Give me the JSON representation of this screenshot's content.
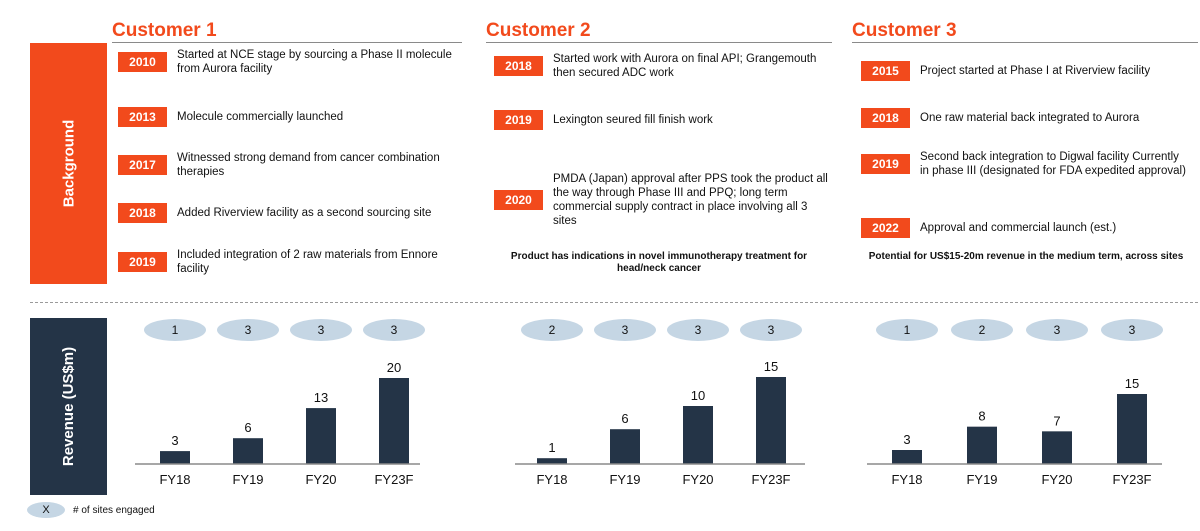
{
  "labels": {
    "background": "Background",
    "revenue": "Revenue (US$m)"
  },
  "customers": [
    {
      "title": "Customer 1",
      "events": [
        {
          "year": "2010",
          "text": "Started at NCE stage by sourcing a Phase II molecule from Aurora facility"
        },
        {
          "year": "2013",
          "text": "Molecule commercially launched"
        },
        {
          "year": "2017",
          "text": "Witnessed strong demand from cancer combination therapies"
        },
        {
          "year": "2018",
          "text": "Added Riverview facility as a second sourcing site"
        },
        {
          "year": "2019",
          "text": "Included integration of 2 raw materials from Ennore facility"
        }
      ],
      "summary": ""
    },
    {
      "title": "Customer 2",
      "events": [
        {
          "year": "2018",
          "text": "Started work with Aurora on final API; Grangemouth then secured ADC work"
        },
        {
          "year": "2019",
          "text": "Lexington seured fill finish work"
        },
        {
          "year": "2020",
          "text": "PMDA (Japan) approval after PPS took the product all the way through Phase III and PPQ; long term commercial supply contract in place involving all 3 sites"
        }
      ],
      "summary": "Product has indications in novel immunotherapy treatment for head/neck cancer"
    },
    {
      "title": "Customer 3",
      "events": [
        {
          "year": "2015",
          "text": "Project started at Phase I at Riverview facility"
        },
        {
          "year": "2018",
          "text": "One raw material back integrated to Aurora"
        },
        {
          "year": "2019",
          "text": "Second back integration to Digwal facility Currently in phase III (designated for FDA expedited approval)"
        },
        {
          "year": "2022",
          "text": "Approval and commercial launch (est.)"
        }
      ],
      "summary": "Potential for US$15-20m revenue in the medium term, across sites"
    }
  ],
  "chart_data": [
    {
      "type": "bar",
      "title": "",
      "categories": [
        "FY18",
        "FY19",
        "FY20",
        "FY23F"
      ],
      "values": [
        3,
        6,
        13,
        20
      ],
      "sites": [
        1,
        3,
        3,
        3
      ],
      "ylabel": "Revenue (US$m)",
      "ylim": [
        0,
        20
      ],
      "grid": false,
      "bar_color": "#243447"
    },
    {
      "type": "bar",
      "title": "",
      "categories": [
        "FY18",
        "FY19",
        "FY20",
        "FY23F"
      ],
      "values": [
        1,
        6,
        10,
        15
      ],
      "sites": [
        2,
        3,
        3,
        3
      ],
      "ylabel": "Revenue (US$m)",
      "ylim": [
        0,
        15
      ],
      "grid": false,
      "bar_color": "#243447"
    },
    {
      "type": "bar",
      "title": "",
      "categories": [
        "FY18",
        "FY19",
        "FY20",
        "FY23F"
      ],
      "values": [
        3,
        8,
        7,
        15
      ],
      "sites": [
        1,
        2,
        3,
        3
      ],
      "ylabel": "Revenue (US$m)",
      "ylim": [
        0,
        15
      ],
      "grid": false,
      "bar_color": "#243447"
    }
  ],
  "legend": {
    "symbol": "X",
    "text": "# of sites engaged"
  },
  "colors": {
    "accent": "#f24a1c",
    "navy": "#243447",
    "site_oval": "#c5d6e4"
  }
}
